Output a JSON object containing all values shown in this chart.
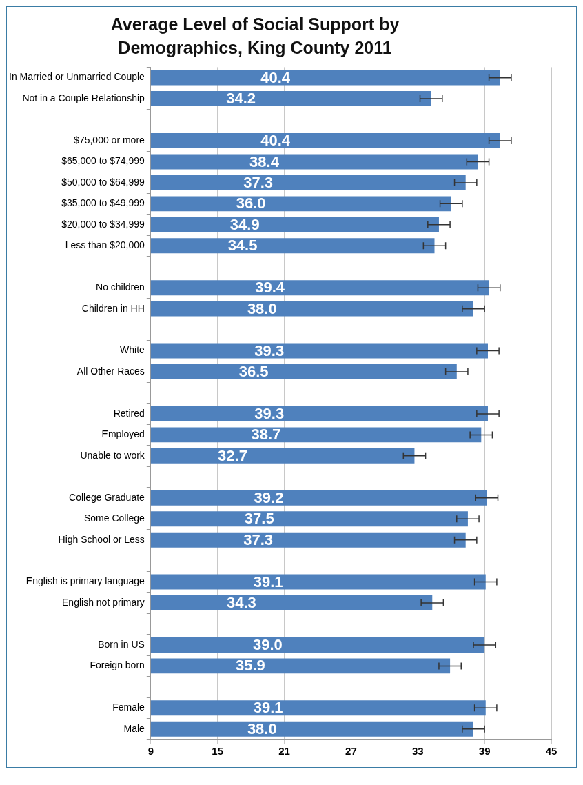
{
  "chart_data": {
    "type": "bar",
    "orientation": "horizontal",
    "title": "Average Level of Social Support by Demographics, King County 2011",
    "categories": [
      "In Married or Unmarried Couple",
      "Not in a Couple Relationship",
      null,
      "$75,000 or more",
      "$65,000 to $74,999",
      "$50,000 to $64,999",
      "$35,000 to $49,999",
      "$20,000 to $34,999",
      "Less than $20,000",
      null,
      "No children",
      "Children in HH",
      null,
      "White",
      "All Other Races",
      null,
      "Retired",
      "Employed",
      "Unable to work",
      null,
      "College Graduate",
      "Some College",
      "High School or Less",
      null,
      "English is primary language",
      "English not primary",
      null,
      "Born in US",
      "Foreign born",
      null,
      "Female",
      "Male"
    ],
    "values": [
      40.4,
      34.2,
      null,
      40.4,
      38.4,
      37.3,
      36.0,
      34.9,
      34.5,
      null,
      39.4,
      38.0,
      null,
      39.3,
      36.5,
      null,
      39.3,
      38.7,
      32.7,
      null,
      39.2,
      37.5,
      37.3,
      null,
      39.1,
      34.3,
      null,
      39.0,
      35.9,
      null,
      39.1,
      38.0
    ],
    "value_labels": [
      "40.4",
      "34.2",
      null,
      "40.4",
      "38.4",
      "37.3",
      "36.0",
      "34.9",
      "34.5",
      null,
      "39.4",
      "38.0",
      null,
      "39.3",
      "36.5",
      null,
      "39.3",
      "38.7",
      "32.7",
      null,
      "39.2",
      "37.5",
      "37.3",
      null,
      "39.1",
      "34.3",
      null,
      "39.0",
      "35.9",
      null,
      "39.1",
      "38.0"
    ],
    "errors": [
      1,
      1,
      null,
      1,
      1,
      1,
      1,
      1,
      1,
      null,
      1,
      1,
      null,
      1,
      1,
      null,
      1,
      1,
      1,
      null,
      1,
      1,
      1,
      null,
      1,
      1,
      null,
      1,
      1,
      null,
      1,
      1
    ],
    "color": "#4f81bd",
    "xlim": [
      9,
      45
    ],
    "xticks": [
      9,
      15,
      21,
      27,
      33,
      39,
      45
    ],
    "grid": "x",
    "legend": false
  }
}
